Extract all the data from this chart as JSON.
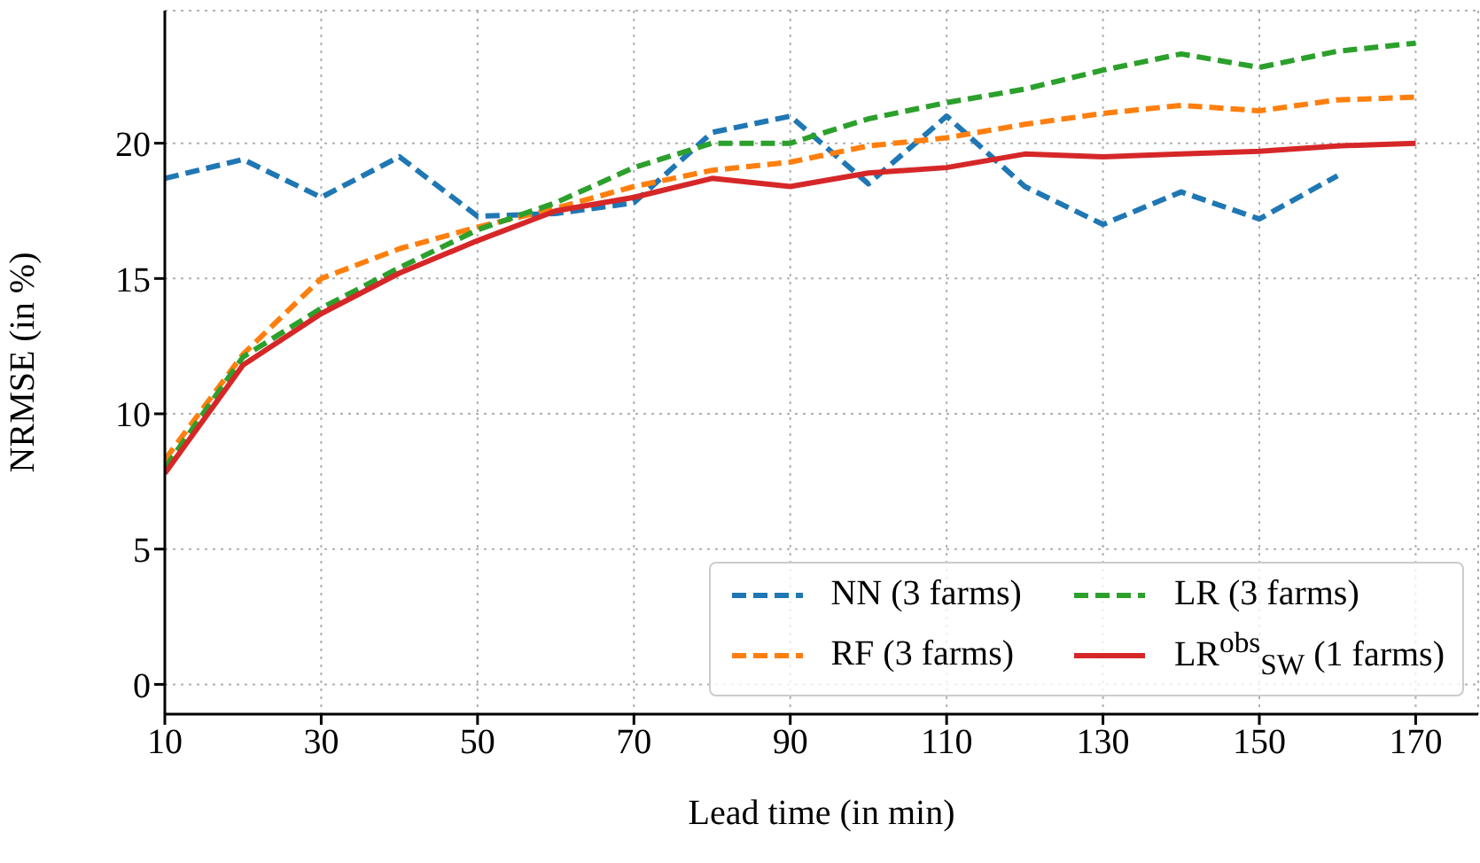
{
  "chart_data": {
    "type": "line",
    "xlabel": "Lead time (in min)",
    "ylabel": "NRMSE (in %)",
    "x": [
      10,
      20,
      30,
      40,
      50,
      60,
      70,
      80,
      90,
      100,
      110,
      120,
      130,
      140,
      150,
      160,
      170
    ],
    "xlim": [
      10,
      178
    ],
    "xticks": [
      10,
      30,
      50,
      70,
      90,
      110,
      130,
      150,
      170
    ],
    "ylim": [
      -1.1,
      24.9
    ],
    "yticks": [
      0,
      5,
      10,
      15,
      20
    ],
    "grid": true,
    "legend": "bottom right",
    "series": [
      {
        "name": "NN (3 farms)",
        "color": "#1f77b4",
        "line_style": "dashed",
        "values": [
          18.7,
          19.4,
          18.0,
          19.5,
          17.3,
          17.4,
          17.8,
          20.4,
          21.0,
          18.5,
          21.0,
          18.4,
          17.0,
          18.2,
          17.2,
          18.8,
          null
        ]
      },
      {
        "name": "RF (3 farms)",
        "color": "#ff7f0e",
        "line_style": "dashed",
        "values": [
          8.3,
          12.2,
          15.0,
          16.1,
          16.9,
          17.6,
          18.4,
          19.0,
          19.3,
          19.9,
          20.2,
          20.7,
          21.1,
          21.4,
          21.2,
          21.6,
          21.7
        ]
      },
      {
        "name": "LR (3 farms)",
        "color": "#2ca02c",
        "line_style": "dashed",
        "values": [
          8.0,
          12.1,
          13.9,
          15.4,
          16.8,
          17.8,
          19.1,
          20.0,
          20.0,
          20.9,
          21.5,
          22.0,
          22.7,
          23.3,
          22.8,
          23.4,
          23.7
        ]
      },
      {
        "name": "LR$^{obs}$$_{SW}$ (1 farms)",
        "color": "#d62728",
        "line_style": "solid",
        "values": [
          7.8,
          11.8,
          13.7,
          15.2,
          16.4,
          17.5,
          18.0,
          18.7,
          18.4,
          18.9,
          19.1,
          19.6,
          19.5,
          19.6,
          19.7,
          19.9,
          20.0
        ]
      }
    ]
  }
}
